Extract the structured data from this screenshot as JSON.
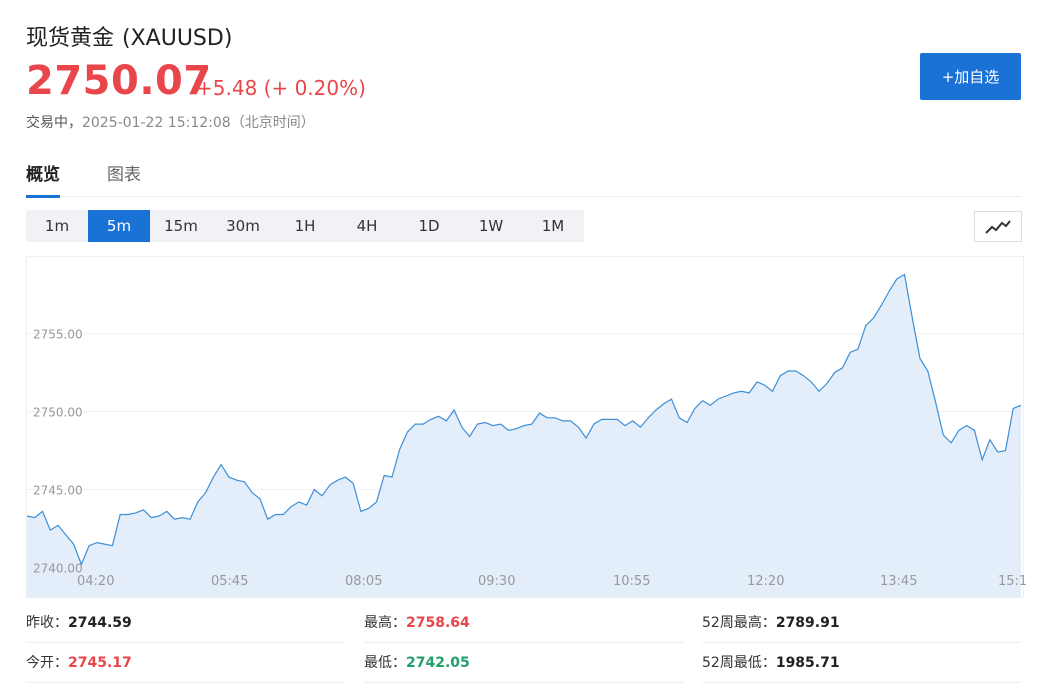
{
  "header": {
    "name": "现货黄金",
    "symbol": "(XAUUSD)",
    "price": "2750.07",
    "change": "+5.48 (+ 0.20%)",
    "status": "交易中，",
    "time": "2025-01-22 15:12:08（北京时间）",
    "add_button": "+加自选"
  },
  "tabs": [
    {
      "label": "概览",
      "active": true
    },
    {
      "label": "图表",
      "active": false
    }
  ],
  "intervals": [
    {
      "label": "1m",
      "active": false
    },
    {
      "label": "5m",
      "active": true
    },
    {
      "label": "15m",
      "active": false
    },
    {
      "label": "30m",
      "active": false
    },
    {
      "label": "1H",
      "active": false
    },
    {
      "label": "4H",
      "active": false
    },
    {
      "label": "1D",
      "active": false
    },
    {
      "label": "1W",
      "active": false
    },
    {
      "label": "1M",
      "active": false
    }
  ],
  "chart_type_icon": "line-chart-icon",
  "colors": {
    "up": "#e8464a",
    "down": "#22a06b",
    "accent": "#1a72d6",
    "line": "#3d8fd6",
    "fill": "#e3eefa"
  },
  "chart_data": {
    "type": "area",
    "x_ticks": [
      "04:20",
      "05:45",
      "08:05",
      "09:30",
      "10:55",
      "12:20",
      "13:45",
      "15:1"
    ],
    "y_ticks": [
      "2740.00",
      "2745.00",
      "2750.00",
      "2755.00"
    ],
    "ylim": [
      2739.2,
      2759.4
    ],
    "grid": true,
    "values": [
      2743.3,
      2743.2,
      2743.6,
      2742.4,
      2742.7,
      2742.1,
      2741.5,
      2740.2,
      2741.4,
      2741.6,
      2741.5,
      2741.4,
      2743.4,
      2743.4,
      2743.5,
      2743.7,
      2743.2,
      2743.3,
      2743.6,
      2743.1,
      2743.2,
      2743.1,
      2744.2,
      2744.8,
      2745.8,
      2746.6,
      2745.8,
      2745.6,
      2745.5,
      2744.8,
      2744.4,
      2743.1,
      2743.4,
      2743.4,
      2743.9,
      2744.2,
      2744.0,
      2745.0,
      2744.6,
      2745.3,
      2745.6,
      2745.8,
      2745.4,
      2743.6,
      2743.8,
      2744.2,
      2745.9,
      2745.8,
      2747.6,
      2748.7,
      2749.2,
      2749.2,
      2749.5,
      2749.7,
      2749.4,
      2750.1,
      2749.0,
      2748.4,
      2749.2,
      2749.3,
      2749.1,
      2749.2,
      2748.8,
      2748.9,
      2749.1,
      2749.2,
      2749.9,
      2749.6,
      2749.6,
      2749.4,
      2749.4,
      2749.0,
      2748.3,
      2749.2,
      2749.5,
      2749.5,
      2749.5,
      2749.1,
      2749.4,
      2749.0,
      2749.6,
      2750.1,
      2750.5,
      2750.8,
      2749.6,
      2749.3,
      2750.2,
      2750.7,
      2750.4,
      2750.8,
      2751.0,
      2751.2,
      2751.3,
      2751.2,
      2751.9,
      2751.7,
      2751.3,
      2752.3,
      2752.6,
      2752.6,
      2752.3,
      2751.9,
      2751.3,
      2751.8,
      2752.5,
      2752.8,
      2753.8,
      2754.0,
      2755.5,
      2756.0,
      2756.8,
      2757.7,
      2758.5,
      2758.8,
      2756.0,
      2753.4,
      2752.6,
      2750.6,
      2748.5,
      2748.0,
      2748.8,
      2749.1,
      2748.8,
      2746.9,
      2748.2,
      2747.4,
      2747.5,
      2750.2,
      2750.4
    ]
  },
  "stats": {
    "prev_close_label": "昨收：",
    "prev_close": "2744.59",
    "open_label": "今开：",
    "open": "2745.17",
    "high_label": "最高：",
    "high": "2758.64",
    "low_label": "最低：",
    "low": "2742.05",
    "wk52_high_label": "52周最高：",
    "wk52_high": "2789.91",
    "wk52_low_label": "52周最低：",
    "wk52_low": "1985.71"
  }
}
